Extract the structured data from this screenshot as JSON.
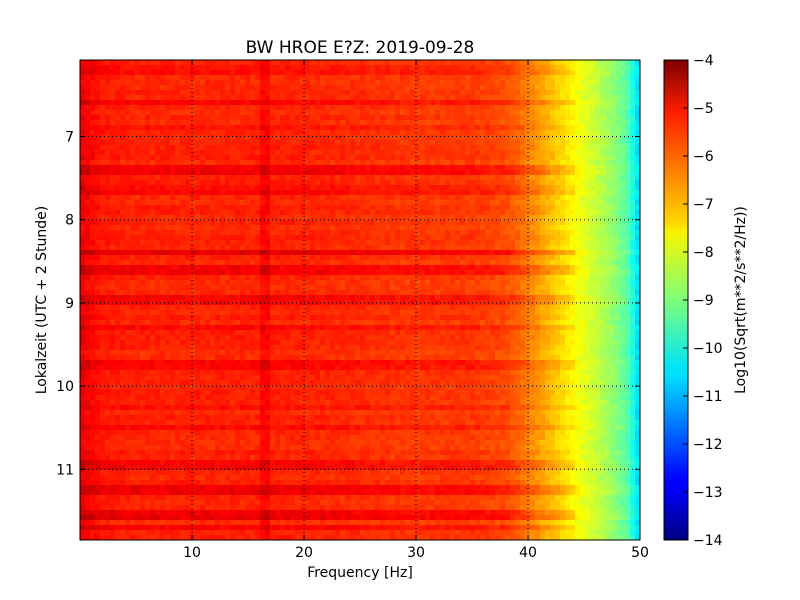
{
  "chart_data": {
    "type": "heatmap",
    "title": "BW HROE E?Z: 2019-09-28",
    "xlabel": "Frequency [Hz]",
    "ylabel": "Lokalzeit (UTC + 2 Stunde)",
    "xlim": [
      0,
      50
    ],
    "ylim": [
      11.85,
      6.08
    ],
    "y_axis_inverted": true,
    "x_ticks": [
      10,
      20,
      30,
      40,
      50
    ],
    "y_ticks": [
      7,
      8,
      9,
      10,
      11
    ],
    "grid": "on (dotted)",
    "colormap": "jet",
    "colorbar": {
      "label": "Log10(Sqrt(m**2/s**2/Hz))",
      "range": [
        -14,
        -4
      ],
      "ticks": [
        -4,
        -5,
        -6,
        -7,
        -8,
        -9,
        -10,
        -11,
        -12,
        -13,
        -14
      ]
    },
    "frequency_profile": {
      "frequency_hz": [
        0,
        1,
        2,
        5,
        10,
        15,
        20,
        25,
        30,
        35,
        38,
        39,
        40,
        41,
        42,
        43,
        44,
        45,
        46,
        47,
        48,
        49,
        49.5,
        50
      ],
      "log10_value": [
        -5.1,
        -5.3,
        -5.5,
        -5.6,
        -5.6,
        -5.6,
        -5.6,
        -5.7,
        -5.8,
        -5.8,
        -6.0,
        -6.2,
        -6.5,
        -6.8,
        -7.1,
        -7.4,
        -7.7,
        -8.0,
        -8.3,
        -8.6,
        -9.0,
        -9.5,
        -10.2,
        -10.8
      ]
    },
    "horizontal_bands": [
      {
        "time": 6.2,
        "offset": 0.2
      },
      {
        "time": 6.6,
        "offset": 0.3
      },
      {
        "time": 6.9,
        "offset": 0.2
      },
      {
        "time": 7.4,
        "offset": 0.45
      },
      {
        "time": 7.65,
        "offset": 0.3
      },
      {
        "time": 8.4,
        "offset": 0.55
      },
      {
        "time": 8.6,
        "offset": 0.5
      },
      {
        "time": 8.95,
        "offset": 0.4
      },
      {
        "time": 9.3,
        "offset": 0.3
      },
      {
        "time": 9.75,
        "offset": 0.3
      },
      {
        "time": 10.25,
        "offset": 0.3
      },
      {
        "time": 10.5,
        "offset": 0.25
      },
      {
        "time": 10.95,
        "offset": 0.35
      },
      {
        "time": 11.25,
        "offset": 0.45
      },
      {
        "time": 11.55,
        "offset": 0.5
      },
      {
        "time": 11.7,
        "offset": 0.35
      }
    ],
    "vertical_features": [
      {
        "frequency_hz": 16.5,
        "offset": 0.3
      }
    ]
  }
}
